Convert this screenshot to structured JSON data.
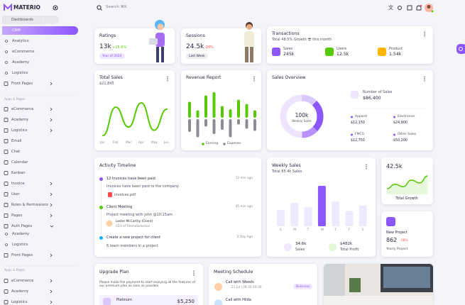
{
  "sidebar": {
    "brand": "MATERIO",
    "dashboards": "Dashboards",
    "dashboards_badge": 5,
    "sub": [
      "CRM",
      "Analytics",
      "eCommerce",
      "Academy",
      "Logistics"
    ],
    "front_pages": "Front Pages",
    "section1": "Apps & Pages",
    "apps": [
      "eCommerce",
      "Academy",
      "Logistics",
      "Email",
      "Chat",
      "Calendar",
      "Kanban",
      "Invoice",
      "User",
      "Roles & Permissions",
      "Pages",
      "Auth Pages"
    ],
    "auth_sub": [
      "Academy",
      "Logistics"
    ],
    "front_pages2": "Front Pages",
    "section2": "Apps & Pages",
    "apps2": [
      "eCommerce",
      "Academy",
      "Logistics"
    ]
  },
  "header": {
    "search": "Search ⌘K"
  },
  "ratings": {
    "title": "Ratings",
    "value": "13k",
    "change": "+15.6%",
    "chip": "Year of 2024"
  },
  "sessions": {
    "title": "Sessions",
    "value": "24.5k",
    "change": "-20%",
    "chip": "Last Week"
  },
  "transactions": {
    "title": "Transactions",
    "subtitle": "Total 48.5% Growth 😎 this month",
    "stats": [
      {
        "label": "Sales",
        "value": "245k"
      },
      {
        "label": "Users",
        "value": "12.5k"
      },
      {
        "label": "Product",
        "value": "1.54k"
      }
    ]
  },
  "total_sales": {
    "title": "Total Sales",
    "value": "$21,845",
    "months": [
      "Jan",
      "Feb",
      "Mar",
      "Apr",
      "May",
      "Jun"
    ],
    "values": [
      8,
      62,
      24,
      70,
      18,
      58
    ]
  },
  "revenue": {
    "title": "Revenue Report",
    "series": [
      {
        "name": "Earning",
        "color": "#56ca00",
        "values": [
          30,
          14,
          42,
          48,
          22,
          16,
          34,
          26,
          14
        ]
      },
      {
        "name": "Expense",
        "color": "#8a8d93",
        "values": [
          24,
          34,
          14,
          28,
          20,
          34,
          10,
          18,
          22
        ]
      }
    ]
  },
  "sales_overview": {
    "title": "Sales Overview",
    "center_value": "100k",
    "center_label": "Weekly Sales",
    "number_label": "Number of Sales",
    "number_value": "$86,400",
    "items": [
      {
        "label": "Apparel",
        "value": 12150,
        "value_label": "$12,150"
      },
      {
        "label": "Electronics",
        "value": 24900,
        "value_label": "$24,900"
      },
      {
        "label": "FMCG",
        "value": 12750,
        "value_label": "$12,750"
      },
      {
        "label": "Other Sales",
        "value": 50200,
        "value_label": "$50,200"
      }
    ]
  },
  "activity": {
    "title": "Activity Timeline",
    "items": [
      {
        "title": "12 Invoices have been paid",
        "time": "12 min ago",
        "desc": "Invoices have been paid to the company",
        "attachment": "invoices.pdf"
      },
      {
        "title": "Client Meeting",
        "time": "45 min ago",
        "desc": "Project meeting with john @10:15am",
        "person": "Lester McCarthy (Client)",
        "role": "CEO of ThemeSelection"
      },
      {
        "title": "Create a new project for client",
        "time": "2 Day Ago",
        "desc": "6 team members in a project"
      }
    ]
  },
  "weekly_sales": {
    "title": "Weekly Sales",
    "subtitle": "Total 85.4k Sales",
    "days": [
      "S",
      "M",
      "T",
      "W",
      "T",
      "F",
      "S"
    ],
    "values": [
      40,
      58,
      48,
      100,
      62,
      38,
      52
    ],
    "sales_value": "34.6k",
    "sales_label": "Sales",
    "profit_value": "$482k",
    "profit_label": "Total Profit"
  },
  "total_growth": {
    "value": "42.5k",
    "label": "Total Growth",
    "values": [
      20,
      42,
      30,
      62,
      48,
      82
    ]
  },
  "new_project": {
    "title": "New Project",
    "value": "862",
    "change": "-18%",
    "label": "Yearly Project"
  },
  "upgrade": {
    "title": "Upgrade Plan",
    "desc": "Please make the payment to start enjoying all the features of our premium plan as soon as possible.",
    "plan": "Platinum",
    "price": "$5,250"
  },
  "meetings": {
    "title": "Meeting Schedule",
    "items": [
      {
        "title": "Call with Woods",
        "time": "21 Jul | 08:20-10:30",
        "chip": "Business"
      },
      {
        "title": "Call with Hilda"
      }
    ]
  }
}
